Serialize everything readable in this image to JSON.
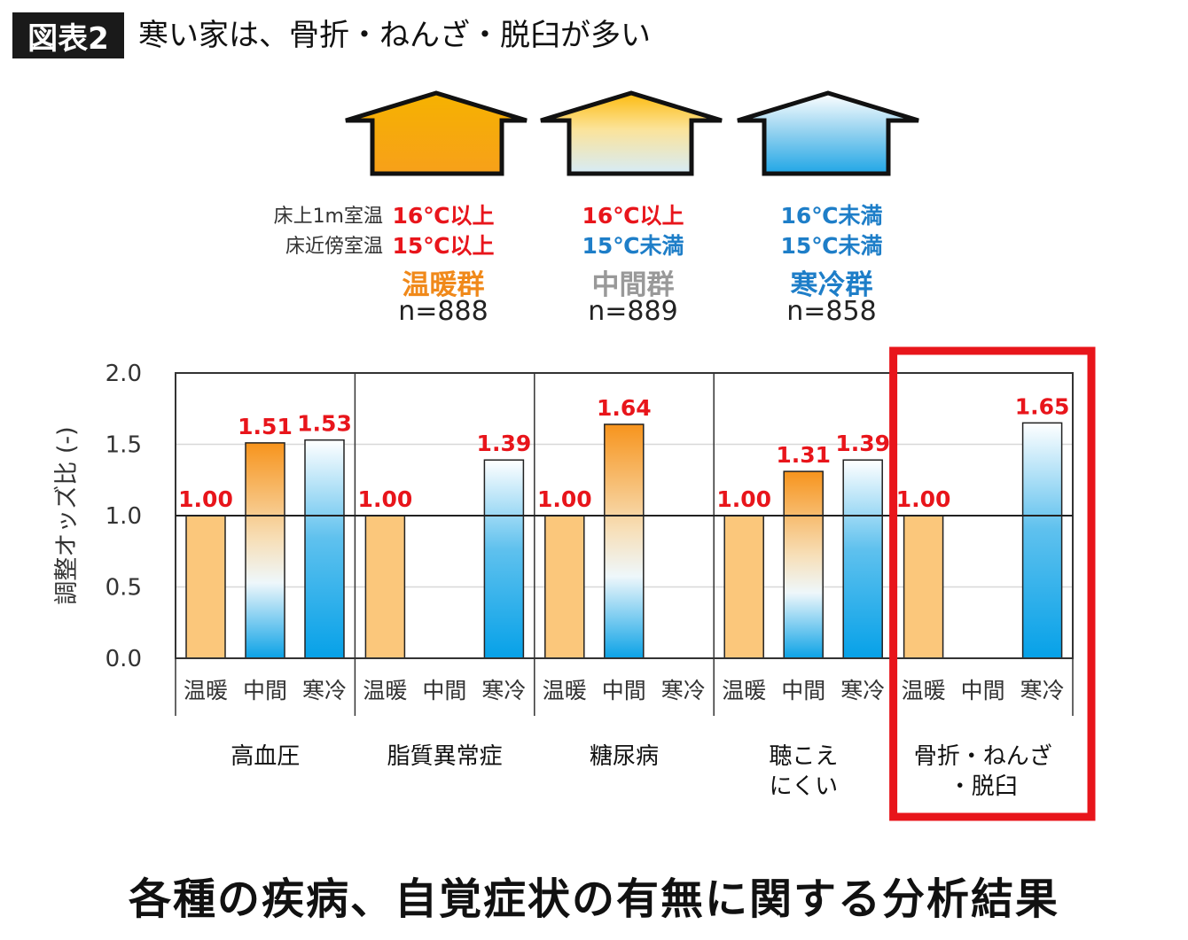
{
  "header": {
    "tag": "図表2",
    "title": "寒い家は、骨折・ねんざ・脱臼が多い"
  },
  "legend": {
    "row_labels": [
      "床上1m室温",
      "床近傍室温"
    ],
    "groups": [
      {
        "key": "warm",
        "name": "温暖群",
        "n": "n=888",
        "floor1m": "16℃以上",
        "floor": "15℃以上",
        "floor1m_color": "#e8151b",
        "floor_color": "#e8151b",
        "name_color": "#f0891a"
      },
      {
        "key": "mid",
        "name": "中間群",
        "n": "n=889",
        "floor1m": "16℃以上",
        "floor": "15℃未満",
        "floor1m_color": "#e8151b",
        "floor_color": "#1e7ec8",
        "name_color": "#999999"
      },
      {
        "key": "cold",
        "name": "寒冷群",
        "n": "n=858",
        "floor1m": "16℃未満",
        "floor": "15℃未満",
        "floor1m_color": "#1e7ec8",
        "floor_color": "#1e7ec8",
        "name_color": "#1e7ec8"
      }
    ]
  },
  "chart_data": {
    "type": "bar",
    "ylabel": "調整オッズ比 (-)",
    "ylim": [
      0,
      2.0
    ],
    "yticks": [
      "0.0",
      "0.5",
      "1.0",
      "1.5",
      "2.0"
    ],
    "bar_labels": [
      "温暖",
      "中間",
      "寒冷"
    ],
    "reference_line": 1.0,
    "categories": [
      {
        "name": "高血圧",
        "values": [
          1.0,
          1.51,
          1.53
        ],
        "labels": [
          "1.00",
          "1.51",
          "1.53"
        ]
      },
      {
        "name": "脂質異常症",
        "values": [
          1.0,
          null,
          1.39
        ],
        "labels": [
          "1.00",
          "",
          "1.39"
        ]
      },
      {
        "name": "糖尿病",
        "values": [
          1.0,
          1.64,
          null
        ],
        "labels": [
          "1.00",
          "1.64",
          ""
        ]
      },
      {
        "name": "聴こえ\nにくい",
        "values": [
          1.0,
          1.31,
          1.39
        ],
        "labels": [
          "1.00",
          "1.31",
          "1.39"
        ]
      },
      {
        "name": "骨折・ねんざ\n・脱臼",
        "values": [
          1.0,
          null,
          1.65
        ],
        "labels": [
          "1.00",
          "",
          "1.65"
        ],
        "highlight": true
      }
    ],
    "colors": {
      "value_label": "#e8151b",
      "highlight_box": "#e8151b",
      "warm_fill": "#fbc77b"
    }
  },
  "footer": {
    "title": "各種の疾病、自覚症状の有無に関する分析結果"
  }
}
